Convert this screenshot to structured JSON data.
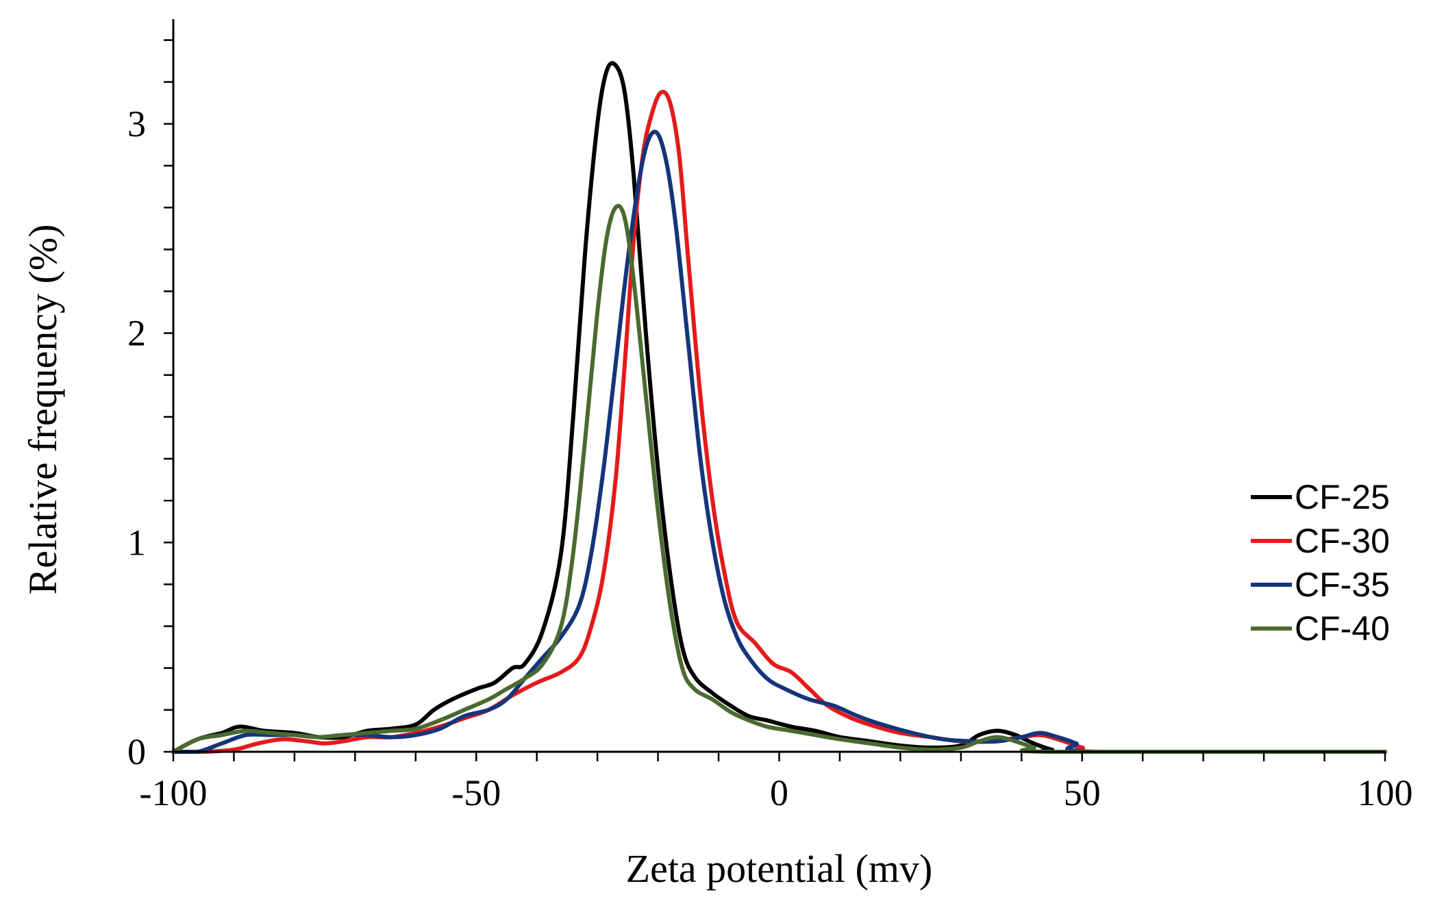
{
  "chart_data": {
    "type": "line",
    "title": "",
    "xlabel": "Zeta potential (mv)",
    "ylabel": "Relative frequency (%)",
    "xlim": [
      -100,
      100
    ],
    "ylim": [
      0,
      3.5
    ],
    "xticks": [
      -100,
      -50,
      0,
      50,
      100
    ],
    "xtick_labels": [
      "-100",
      "-50",
      "0",
      "50",
      "100"
    ],
    "x_minor_step": 10,
    "yticks": [
      0,
      1,
      2,
      3
    ],
    "ytick_labels": [
      "0",
      "1",
      "2",
      "3"
    ],
    "y_minor_step": 0.2,
    "grid": false,
    "legend_position": "center-right",
    "series": [
      {
        "name": "CF-25",
        "color": "#000000",
        "points": [
          [
            -100,
            0.0
          ],
          [
            -96,
            0.06
          ],
          [
            -92,
            0.09
          ],
          [
            -89,
            0.12
          ],
          [
            -85,
            0.1
          ],
          [
            -80,
            0.09
          ],
          [
            -76,
            0.07
          ],
          [
            -72,
            0.07
          ],
          [
            -68,
            0.1
          ],
          [
            -64,
            0.11
          ],
          [
            -60,
            0.13
          ],
          [
            -57,
            0.2
          ],
          [
            -54,
            0.25
          ],
          [
            -50,
            0.3
          ],
          [
            -47,
            0.33
          ],
          [
            -44,
            0.4
          ],
          [
            -42,
            0.42
          ],
          [
            -39,
            0.58
          ],
          [
            -36,
            0.95
          ],
          [
            -34,
            1.6
          ],
          [
            -32,
            2.4
          ],
          [
            -30,
            3.0
          ],
          [
            -28.5,
            3.25
          ],
          [
            -27,
            3.28
          ],
          [
            -25.5,
            3.15
          ],
          [
            -24,
            2.75
          ],
          [
            -22,
            2.0
          ],
          [
            -20,
            1.35
          ],
          [
            -18,
            0.85
          ],
          [
            -16,
            0.5
          ],
          [
            -14,
            0.36
          ],
          [
            -11,
            0.28
          ],
          [
            -8,
            0.22
          ],
          [
            -5,
            0.17
          ],
          [
            -2,
            0.15
          ],
          [
            2,
            0.12
          ],
          [
            6,
            0.1
          ],
          [
            10,
            0.07
          ],
          [
            15,
            0.05
          ],
          [
            20,
            0.03
          ],
          [
            25,
            0.02
          ],
          [
            30,
            0.03
          ],
          [
            33,
            0.08
          ],
          [
            36,
            0.1
          ],
          [
            39,
            0.08
          ],
          [
            42,
            0.04
          ],
          [
            45,
            0.01
          ],
          [
            48,
            0.0
          ],
          [
            100,
            0.0
          ]
        ]
      },
      {
        "name": "CF-30",
        "color": "#e31a1c",
        "points": [
          [
            -100,
            0.0
          ],
          [
            -95,
            0.0
          ],
          [
            -90,
            0.01
          ],
          [
            -86,
            0.04
          ],
          [
            -82,
            0.06
          ],
          [
            -78,
            0.05
          ],
          [
            -75,
            0.04
          ],
          [
            -72,
            0.05
          ],
          [
            -68,
            0.07
          ],
          [
            -64,
            0.07
          ],
          [
            -60,
            0.09
          ],
          [
            -56,
            0.12
          ],
          [
            -52,
            0.16
          ],
          [
            -48,
            0.2
          ],
          [
            -44,
            0.27
          ],
          [
            -40,
            0.33
          ],
          [
            -36,
            0.38
          ],
          [
            -33,
            0.45
          ],
          [
            -31,
            0.6
          ],
          [
            -29,
            0.85
          ],
          [
            -27,
            1.3
          ],
          [
            -25.5,
            1.85
          ],
          [
            -24,
            2.45
          ],
          [
            -22.5,
            2.85
          ],
          [
            -21,
            3.05
          ],
          [
            -19.5,
            3.15
          ],
          [
            -18,
            3.1
          ],
          [
            -16.5,
            2.85
          ],
          [
            -15,
            2.35
          ],
          [
            -13,
            1.7
          ],
          [
            -11,
            1.2
          ],
          [
            -9,
            0.85
          ],
          [
            -7,
            0.62
          ],
          [
            -4,
            0.52
          ],
          [
            -1,
            0.42
          ],
          [
            2,
            0.38
          ],
          [
            5,
            0.3
          ],
          [
            8,
            0.22
          ],
          [
            12,
            0.16
          ],
          [
            16,
            0.12
          ],
          [
            20,
            0.09
          ],
          [
            25,
            0.07
          ],
          [
            30,
            0.05
          ],
          [
            35,
            0.05
          ],
          [
            40,
            0.07
          ],
          [
            43,
            0.08
          ],
          [
            46,
            0.06
          ],
          [
            50,
            0.02
          ],
          [
            53,
            0.0
          ],
          [
            100,
            0.0
          ]
        ]
      },
      {
        "name": "CF-35",
        "color": "#14357a",
        "points": [
          [
            -100,
            0.0
          ],
          [
            -96,
            0.0
          ],
          [
            -92,
            0.04
          ],
          [
            -88,
            0.08
          ],
          [
            -84,
            0.08
          ],
          [
            -80,
            0.08
          ],
          [
            -76,
            0.07
          ],
          [
            -72,
            0.08
          ],
          [
            -68,
            0.08
          ],
          [
            -64,
            0.07
          ],
          [
            -60,
            0.08
          ],
          [
            -56,
            0.11
          ],
          [
            -52,
            0.17
          ],
          [
            -48,
            0.2
          ],
          [
            -45,
            0.25
          ],
          [
            -42,
            0.35
          ],
          [
            -39,
            0.45
          ],
          [
            -36,
            0.55
          ],
          [
            -33,
            0.7
          ],
          [
            -31,
            0.95
          ],
          [
            -29,
            1.35
          ],
          [
            -27,
            1.85
          ],
          [
            -25,
            2.35
          ],
          [
            -23,
            2.75
          ],
          [
            -21.5,
            2.93
          ],
          [
            -20,
            2.95
          ],
          [
            -18.5,
            2.8
          ],
          [
            -17,
            2.5
          ],
          [
            -15,
            1.95
          ],
          [
            -13,
            1.4
          ],
          [
            -11,
            1.0
          ],
          [
            -9,
            0.72
          ],
          [
            -7,
            0.55
          ],
          [
            -5,
            0.45
          ],
          [
            -2,
            0.35
          ],
          [
            1,
            0.3
          ],
          [
            5,
            0.25
          ],
          [
            9,
            0.22
          ],
          [
            13,
            0.17
          ],
          [
            17,
            0.13
          ],
          [
            22,
            0.09
          ],
          [
            27,
            0.06
          ],
          [
            32,
            0.05
          ],
          [
            36,
            0.05
          ],
          [
            40,
            0.07
          ],
          [
            43,
            0.09
          ],
          [
            46,
            0.07
          ],
          [
            49,
            0.04
          ],
          [
            52,
            0.0
          ],
          [
            100,
            0.0
          ]
        ]
      },
      {
        "name": "CF-40",
        "color": "#4a6a30",
        "points": [
          [
            -100,
            0.0
          ],
          [
            -96,
            0.06
          ],
          [
            -92,
            0.08
          ],
          [
            -88,
            0.1
          ],
          [
            -84,
            0.09
          ],
          [
            -80,
            0.08
          ],
          [
            -76,
            0.07
          ],
          [
            -72,
            0.08
          ],
          [
            -68,
            0.09
          ],
          [
            -64,
            0.1
          ],
          [
            -60,
            0.11
          ],
          [
            -56,
            0.15
          ],
          [
            -52,
            0.2
          ],
          [
            -48,
            0.25
          ],
          [
            -45,
            0.3
          ],
          [
            -42,
            0.35
          ],
          [
            -39,
            0.42
          ],
          [
            -36,
            0.6
          ],
          [
            -34,
            0.95
          ],
          [
            -32,
            1.5
          ],
          [
            -30,
            2.1
          ],
          [
            -28.5,
            2.45
          ],
          [
            -27,
            2.6
          ],
          [
            -25.5,
            2.55
          ],
          [
            -24,
            2.25
          ],
          [
            -22,
            1.7
          ],
          [
            -20,
            1.15
          ],
          [
            -18,
            0.7
          ],
          [
            -16,
            0.4
          ],
          [
            -14,
            0.3
          ],
          [
            -11,
            0.25
          ],
          [
            -8,
            0.19
          ],
          [
            -5,
            0.15
          ],
          [
            -2,
            0.12
          ],
          [
            2,
            0.1
          ],
          [
            6,
            0.08
          ],
          [
            10,
            0.06
          ],
          [
            15,
            0.04
          ],
          [
            20,
            0.02
          ],
          [
            25,
            0.01
          ],
          [
            30,
            0.02
          ],
          [
            33,
            0.05
          ],
          [
            36,
            0.07
          ],
          [
            39,
            0.05
          ],
          [
            42,
            0.02
          ],
          [
            45,
            0.0
          ],
          [
            100,
            0.0
          ]
        ]
      }
    ]
  }
}
